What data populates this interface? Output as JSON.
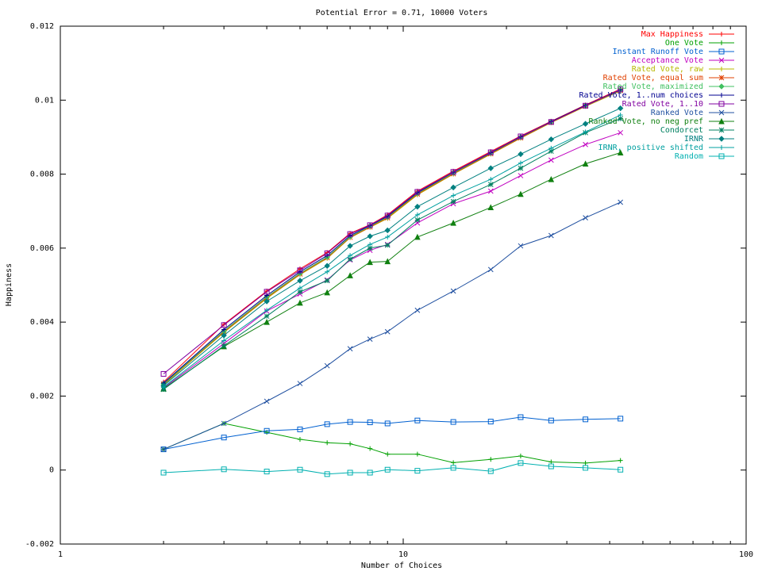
{
  "chart_data": {
    "type": "line",
    "title": "Potential Error = 0.71, 10000 Voters",
    "xlabel": "Number of Choices",
    "ylabel": "Happiness",
    "x_scale": "log",
    "xlim": [
      1,
      100
    ],
    "ylim": [
      -0.002,
      0.012
    ],
    "x_ticks": [
      1,
      10,
      100
    ],
    "x_tick_labels": [
      "1",
      "10",
      "100"
    ],
    "y_ticks": [
      -0.002,
      0,
      0.002,
      0.004,
      0.006,
      0.008,
      0.01,
      0.012
    ],
    "y_tick_labels": [
      "-0.002",
      "0",
      "0.002",
      "0.004",
      "0.006",
      "0.008",
      "0.01",
      "0.012"
    ],
    "grid": false,
    "legend_position": "top-right",
    "x": [
      2,
      3,
      4,
      5,
      6,
      7,
      8,
      9,
      11,
      14,
      18,
      22,
      27,
      34,
      43
    ],
    "series": [
      {
        "name": "Max Happiness",
        "color": "#ff0000",
        "marker": "plus",
        "values": [
          0.00238,
          0.00394,
          0.00484,
          0.00544,
          0.00588,
          0.0064,
          0.00663,
          0.0069,
          0.00754,
          0.00808,
          0.00861,
          0.00903,
          0.00943,
          0.00987,
          0.0103
        ]
      },
      {
        "name": "One Vote",
        "color": "#00a000",
        "marker": "plus",
        "values": [
          0.00056,
          0.00126,
          0.00102,
          0.00083,
          0.00074,
          0.00071,
          0.00058,
          0.00043,
          0.00043,
          0.0002,
          0.00029,
          0.00038,
          0.00022,
          0.00019,
          0.00026
        ]
      },
      {
        "name": "Instant Runoff Vote",
        "color": "#0060d0",
        "marker": "square",
        "values": [
          0.00056,
          0.00088,
          0.00106,
          0.0011,
          0.00124,
          0.0013,
          0.00129,
          0.00126,
          0.00134,
          0.0013,
          0.00131,
          0.00143,
          0.00134,
          0.00137,
          0.00139
        ]
      },
      {
        "name": "Acceptance Vote",
        "color": "#c000c0",
        "marker": "x",
        "values": [
          0.00222,
          0.00342,
          0.0043,
          0.00476,
          0.00514,
          0.00568,
          0.00594,
          0.0061,
          0.00668,
          0.0072,
          0.00754,
          0.00796,
          0.00838,
          0.0088,
          0.00912
        ]
      },
      {
        "name": "Rated Vote, raw",
        "color": "#b8b800",
        "marker": "plus",
        "values": [
          0.0023,
          0.00372,
          0.00464,
          0.00528,
          0.00572,
          0.00628,
          0.00656,
          0.0068,
          0.00744,
          0.008,
          0.00854,
          0.00897,
          0.00939,
          0.00983,
          0.01025
        ]
      },
      {
        "name": "Rated Vote, equal sum",
        "color": "#e04000",
        "marker": "star",
        "values": [
          0.00232,
          0.00374,
          0.00466,
          0.0053,
          0.00574,
          0.00629,
          0.00657,
          0.00682,
          0.00746,
          0.00801,
          0.00855,
          0.00898,
          0.0094,
          0.00984,
          0.01026
        ]
      },
      {
        "name": "Rated Vote, maximized",
        "color": "#40c060",
        "marker": "diamond",
        "values": [
          0.00233,
          0.00376,
          0.00468,
          0.00532,
          0.00576,
          0.00631,
          0.00659,
          0.00684,
          0.00748,
          0.00803,
          0.00857,
          0.009,
          0.00941,
          0.00985,
          0.01027
        ]
      },
      {
        "name": "Rated Vote, 1..num choices",
        "color": "#000090",
        "marker": "plus",
        "values": [
          0.00235,
          0.0038,
          0.00472,
          0.00536,
          0.0058,
          0.00634,
          0.00661,
          0.00686,
          0.0075,
          0.00805,
          0.00858,
          0.00901,
          0.00942,
          0.00986,
          0.01028
        ]
      },
      {
        "name": "Rated Vote, 1..10",
        "color": "#8000a0",
        "marker": "square",
        "values": [
          0.0026,
          0.00392,
          0.00482,
          0.0054,
          0.00586,
          0.00638,
          0.00662,
          0.00688,
          0.00752,
          0.00806,
          0.00859,
          0.00902,
          0.00941,
          0.00985,
          0.01029
        ]
      },
      {
        "name": "Ranked Vote",
        "color": "#2050a0",
        "marker": "x",
        "values": [
          0.00056,
          0.00126,
          0.00186,
          0.00234,
          0.00282,
          0.00328,
          0.00354,
          0.00374,
          0.00432,
          0.00484,
          0.00542,
          0.00606,
          0.00634,
          0.00682,
          0.00724
        ]
      },
      {
        "name": "Ranked Vote, no neg pref",
        "color": "#108010",
        "marker": "triangle",
        "values": [
          0.0022,
          0.00334,
          0.004,
          0.00452,
          0.0048,
          0.00526,
          0.00562,
          0.00564,
          0.0063,
          0.00668,
          0.0071,
          0.00746,
          0.00786,
          0.00828,
          0.00858
        ]
      },
      {
        "name": "Condorcet",
        "color": "#008060",
        "marker": "star",
        "values": [
          0.00218,
          0.00336,
          0.00416,
          0.00482,
          0.00512,
          0.0057,
          0.006,
          0.00608,
          0.00676,
          0.00726,
          0.00772,
          0.00816,
          0.00862,
          0.00912,
          0.0095
        ]
      },
      {
        "name": "IRNR",
        "color": "#008080",
        "marker": "diamond",
        "values": [
          0.00228,
          0.00364,
          0.00456,
          0.00512,
          0.00552,
          0.00606,
          0.00632,
          0.00648,
          0.00712,
          0.00764,
          0.00816,
          0.00854,
          0.00894,
          0.00936,
          0.00978
        ]
      },
      {
        "name": "IRNR, positive shifted",
        "color": "#00a0a0",
        "marker": "plus",
        "values": [
          0.00224,
          0.0035,
          0.00432,
          0.00492,
          0.00536,
          0.0058,
          0.0061,
          0.0063,
          0.0069,
          0.00742,
          0.00786,
          0.0083,
          0.0087,
          0.00914,
          0.0096
        ]
      },
      {
        "name": "Random",
        "color": "#00b0b0",
        "marker": "square",
        "values": [
          -7e-05,
          2e-05,
          -4e-05,
          1e-05,
          -0.00011,
          -7e-05,
          -7e-05,
          1e-05,
          -2e-05,
          6e-05,
          -3e-05,
          0.00019,
          0.0001,
          6e-05,
          1e-05
        ]
      }
    ]
  }
}
